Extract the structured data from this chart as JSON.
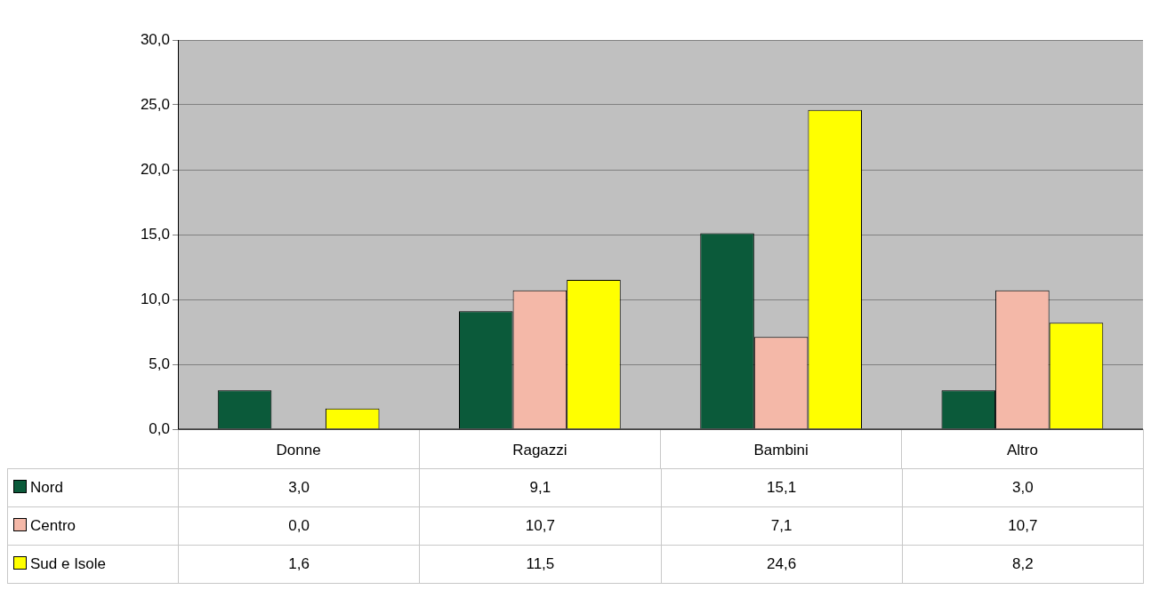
{
  "chart_data": {
    "type": "bar",
    "categories": [
      "Donne",
      "Ragazzi",
      "Bambini",
      "Altro"
    ],
    "series": [
      {
        "name": "Nord",
        "color": "#0b5a3a",
        "values": [
          3.0,
          9.1,
          15.1,
          3.0
        ],
        "value_labels": [
          "3,0",
          "9,1",
          "15,1",
          "3,0"
        ]
      },
      {
        "name": "Centro",
        "color": "#f4b8a8",
        "values": [
          0.0,
          10.7,
          7.1,
          10.7
        ],
        "value_labels": [
          "0,0",
          "10,7",
          "7,1",
          "10,7"
        ]
      },
      {
        "name": "Sud e Isole",
        "color": "#ffff00",
        "values": [
          1.6,
          11.5,
          24.6,
          8.2
        ],
        "value_labels": [
          "1,6",
          "11,5",
          "24,6",
          "8,2"
        ]
      }
    ],
    "ylim": [
      0,
      30
    ],
    "yticks": [
      {
        "value": 0,
        "label": "0,0"
      },
      {
        "value": 5,
        "label": "5,0"
      },
      {
        "value": 10,
        "label": "10,0"
      },
      {
        "value": 15,
        "label": "15,0"
      },
      {
        "value": 20,
        "label": "20,0"
      },
      {
        "value": 25,
        "label": "25,0"
      },
      {
        "value": 30,
        "label": "30,0"
      }
    ],
    "grid": "y",
    "legend": "bottom left"
  }
}
